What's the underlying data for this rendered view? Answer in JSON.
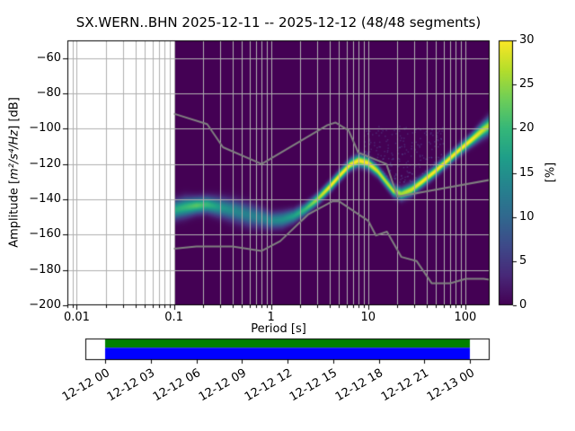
{
  "title": "SX.WERN..BHN   2025-12-11 -- 2025-12-12  (48/48 segments)",
  "chart_data": {
    "type": "heatmap",
    "title": "SX.WERN..BHN   2025-12-11 -- 2025-12-12  (48/48 segments)",
    "xlabel": "Period [s]",
    "ylabel": "Amplitude [m²/s⁴/Hz] [dB]",
    "ylabel_parts": {
      "prefix": "Amplitude [",
      "math": "m²/s⁴/Hz",
      "suffix": "] [dB]"
    },
    "xscale": "log",
    "xlim": [
      0.008,
      178
    ],
    "ylim": [
      -200,
      -50
    ],
    "xticks": [
      0.01,
      0.1,
      1,
      10,
      100
    ],
    "xtick_labels": [
      "0.01",
      "0.1",
      "1",
      "10",
      "100"
    ],
    "yticks": [
      -60,
      -80,
      -100,
      -120,
      -140,
      -160,
      -180,
      -200
    ],
    "ytick_labels": [
      "−60",
      "−80",
      "−100",
      "−120",
      "−140",
      "−160",
      "−180",
      "−200"
    ],
    "grid": true,
    "grid_color": "#b0b0b0",
    "background_color": "#440154",
    "data_period_range": [
      0.1,
      178
    ],
    "colorbar": {
      "label": "[%]",
      "min": 0,
      "max": 30,
      "ticks": [
        0,
        5,
        10,
        15,
        20,
        25,
        30
      ],
      "colormap": "viridis",
      "viridis_stops": [
        "#440154",
        "#482878",
        "#3e4989",
        "#31688e",
        "#26828e",
        "#1f9e89",
        "#35b779",
        "#6ece58",
        "#b5de2b",
        "#fde725"
      ]
    },
    "mode_curve": {
      "comment": "dominant PSD ridge of the probabilistic power spectral density",
      "periods": [
        0.1,
        0.13,
        0.17,
        0.22,
        0.3,
        0.42,
        0.6,
        0.8,
        1.0,
        1.3,
        1.7,
        2.2,
        3.0,
        4.0,
        5.2,
        6.5,
        8.0,
        10.0,
        12.5,
        15.0,
        18.0,
        22.0,
        28.0,
        36.0,
        48.0,
        64.0,
        85.0,
        115.0,
        150.0,
        178.0
      ],
      "db": [
        -146,
        -144.5,
        -143.5,
        -143,
        -144.5,
        -146.5,
        -149,
        -150.5,
        -152,
        -151.5,
        -149.5,
        -146,
        -140,
        -133,
        -126,
        -120.5,
        -118,
        -119.5,
        -124,
        -129.5,
        -135,
        -137,
        -134.5,
        -130,
        -124.5,
        -118.5,
        -112.5,
        -106.5,
        -101,
        -98
      ],
      "spread_db": [
        3.5,
        3.5,
        3.0,
        3.0,
        3.5,
        4.0,
        4.0,
        3.5,
        3.0,
        3.0,
        2.5,
        2.2,
        2.0,
        2.0,
        2.0,
        2.0,
        2.2,
        2.2,
        2.0,
        2.0,
        2.0,
        2.2,
        2.2,
        2.0,
        2.0,
        2.0,
        2.0,
        2.2,
        2.8,
        3.2
      ],
      "peak_percent": [
        18,
        20,
        22,
        20,
        16,
        14,
        13,
        13,
        14,
        15,
        17,
        20,
        26,
        30,
        30,
        30,
        30,
        30,
        28,
        27,
        27,
        26,
        28,
        30,
        30,
        30,
        30,
        30,
        28,
        26
      ]
    },
    "noise_models": {
      "color": "#808080",
      "nhnm": [
        [
          0.1,
          -91.5
        ],
        [
          0.22,
          -97.4
        ],
        [
          0.32,
          -110.5
        ],
        [
          0.8,
          -120.0
        ],
        [
          3.8,
          -98.0
        ],
        [
          4.6,
          -96.5
        ],
        [
          6.3,
          -101.0
        ],
        [
          7.9,
          -113.5
        ],
        [
          15.4,
          -120.0
        ],
        [
          20.0,
          -138.5
        ],
        [
          354.8,
          -126.0
        ]
      ],
      "nlnm": [
        [
          0.1,
          -168.0
        ],
        [
          0.17,
          -166.7
        ],
        [
          0.4,
          -166.7
        ],
        [
          0.8,
          -169.2
        ],
        [
          1.24,
          -163.7
        ],
        [
          2.4,
          -148.6
        ],
        [
          4.3,
          -141.1
        ],
        [
          5.0,
          -141.1
        ],
        [
          6.0,
          -144.0
        ],
        [
          10.0,
          -152.1
        ],
        [
          12.0,
          -160.5
        ],
        [
          15.6,
          -158.3
        ],
        [
          21.9,
          -172.6
        ],
        [
          31.6,
          -175.0
        ],
        [
          45.0,
          -187.5
        ],
        [
          70.0,
          -187.5
        ],
        [
          101.0,
          -185.0
        ],
        [
          154.0,
          -185.0
        ],
        [
          328.0,
          -187.5
        ]
      ]
    },
    "faint_scatter": {
      "period_range": [
        9,
        60
      ],
      "db_range": [
        -130,
        -98
      ],
      "count": 260
    }
  },
  "timeline": {
    "coverage_colors": {
      "top": "#008000",
      "bottom": "#0000ff"
    },
    "tick_labels": [
      "12-12 00",
      "12-12 03",
      "12-12 06",
      "12-12 09",
      "12-12 12",
      "12-12 15",
      "12-12 18",
      "12-12 21",
      "12-13 00"
    ]
  }
}
